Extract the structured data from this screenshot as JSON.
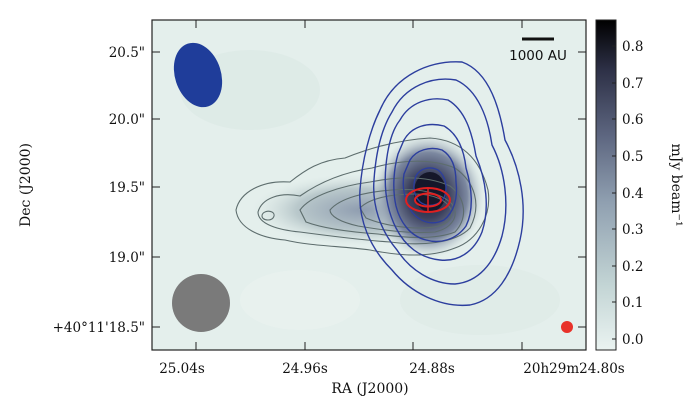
{
  "chart_data": {
    "type": "heatmap",
    "title": "",
    "xlabel": "RA (J2000)",
    "ylabel": "Dec (J2000)",
    "x_ticks": [
      "25.04s",
      "24.96s",
      "24.88s",
      "20h29m24.80s"
    ],
    "y_ticks": [
      "20.5\"",
      "20.0\"",
      "19.5\"",
      "19.0\"",
      "+40°11'18.5\""
    ],
    "colorbar": {
      "label": "mJy beam⁻¹",
      "min": 0.0,
      "max": 0.85,
      "ticks": [
        "0.8",
        "0.7",
        "0.6",
        "0.5",
        "0.4",
        "0.3",
        "0.2",
        "0.1",
        "0.0"
      ],
      "colormap": [
        "#eaf3f1",
        "#c2d4d4",
        "#8f9fb0",
        "#5d6680",
        "#2d3046",
        "#000000"
      ]
    },
    "scale_bar": {
      "label": "1000 AU"
    },
    "beams": [
      {
        "name": "blue-contour-beam",
        "color": "#1f3d9a"
      },
      {
        "name": "grayscale-beam",
        "color": "#7a7a7a"
      },
      {
        "name": "red-contour-beam",
        "color": "#e8322a"
      }
    ],
    "contour_sets": [
      {
        "name": "gray-contours",
        "color": "#5d6d6d",
        "levels": 7
      },
      {
        "name": "blue-contours",
        "color": "#2c3e9e",
        "levels": 6
      },
      {
        "name": "red-contours",
        "color": "#e02020",
        "levels": 2
      }
    ],
    "colors": {
      "background": "#e4efec",
      "frame": "#222222"
    }
  }
}
